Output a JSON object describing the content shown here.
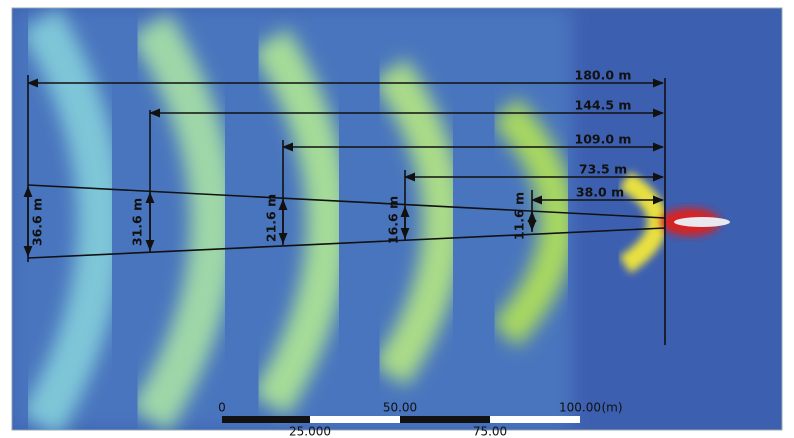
{
  "horizontal_distances": [
    "180.0 m",
    "144.5 m",
    "109.0 m",
    "73.5 m",
    "38.0 m"
  ],
  "wake_widths": [
    "36.6 m",
    "31.6 m",
    "21.6 m",
    "16.6 m",
    "11.6 m"
  ],
  "scale_bar": {
    "top_labels": [
      "0",
      "50.00",
      "100.00",
      "(m)"
    ],
    "bottom_labels": [
      "25.000",
      "75.00"
    ]
  }
}
